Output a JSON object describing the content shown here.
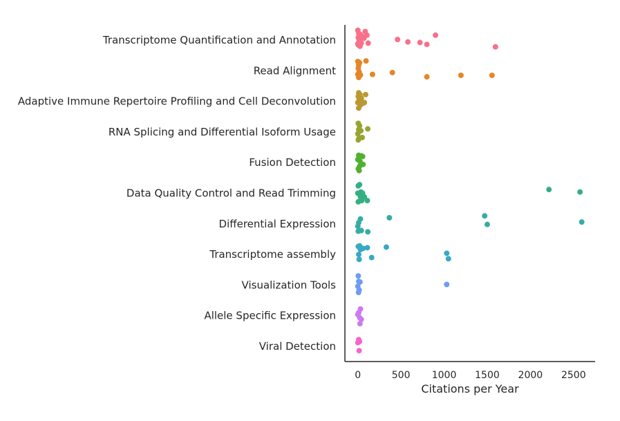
{
  "chart_data": {
    "type": "scatter",
    "xlabel": "Citations per Year",
    "ylabel": "",
    "xlim": [
      -150,
      2750
    ],
    "xticks": [
      0,
      500,
      1000,
      1500,
      2000,
      2500
    ],
    "xtick_labels": [
      "0",
      "500",
      "1000",
      "1500",
      "2000",
      "2500"
    ],
    "grid": false,
    "categories": [
      "Transcriptome Quantification and Annotation",
      "Read Alignment",
      "Adaptive Immune Repertoire Profiling and Cell Deconvolution",
      "RNA Splicing and Differential Isoform Usage",
      "Fusion Detection",
      "Data Quality Control and Read Trimming",
      "Differential Expression",
      "Transcriptome assembly",
      "Visualization Tools",
      "Allele Specific Expression",
      "Viral Detection"
    ],
    "colors": [
      "#f77189",
      "#e5862a",
      "#bb9832",
      "#97a431",
      "#50b131",
      "#34af84",
      "#36ada4",
      "#38a9c5",
      "#6e9bf4",
      "#cc7af4",
      "#f565cc"
    ],
    "points": [
      [
        [
          0,
          -0.32
        ],
        [
          85,
          -0.28
        ],
        [
          10,
          -0.22
        ],
        [
          30,
          -0.18
        ],
        [
          105,
          -0.16
        ],
        [
          50,
          -0.12
        ],
        [
          5,
          -0.08
        ],
        [
          20,
          -0.04
        ],
        [
          900,
          -0.16
        ],
        [
          460,
          -0.02
        ],
        [
          580,
          0.06
        ],
        [
          720,
          0.08
        ],
        [
          800,
          0.14
        ],
        [
          1595,
          0.22
        ],
        [
          120,
          0.1
        ],
        [
          15,
          0.02
        ],
        [
          40,
          0.1
        ],
        [
          5,
          0.16
        ],
        [
          25,
          0.2
        ],
        [
          70,
          -0.06
        ],
        [
          0,
          0.12
        ]
      ],
      [
        [
          0,
          -0.3
        ],
        [
          20,
          -0.26
        ],
        [
          95,
          -0.32
        ],
        [
          10,
          -0.18
        ],
        [
          5,
          -0.08
        ],
        [
          15,
          0.04
        ],
        [
          0,
          0.12
        ],
        [
          30,
          0.14
        ],
        [
          170,
          0.12
        ],
        [
          400,
          0.06
        ],
        [
          800,
          0.2
        ],
        [
          1195,
          0.15
        ],
        [
          1555,
          0.15
        ],
        [
          10,
          0.22
        ]
      ],
      [
        [
          10,
          -0.28
        ],
        [
          25,
          -0.22
        ],
        [
          5,
          -0.16
        ],
        [
          90,
          -0.22
        ],
        [
          40,
          -0.1
        ],
        [
          15,
          -0.04
        ],
        [
          0,
          0.04
        ],
        [
          60,
          0.06
        ],
        [
          75,
          0.04
        ],
        [
          30,
          0.12
        ],
        [
          10,
          0.22
        ]
      ],
      [
        [
          5,
          -0.28
        ],
        [
          20,
          -0.2
        ],
        [
          115,
          -0.1
        ],
        [
          10,
          -0.08
        ],
        [
          35,
          -0.04
        ],
        [
          0,
          0.06
        ],
        [
          50,
          0.18
        ],
        [
          15,
          0.2
        ],
        [
          5,
          0.26
        ]
      ],
      [
        [
          10,
          -0.24
        ],
        [
          40,
          -0.22
        ],
        [
          55,
          -0.2
        ],
        [
          0,
          -0.1
        ],
        [
          25,
          -0.04
        ],
        [
          60,
          0.06
        ],
        [
          20,
          0.12
        ],
        [
          5,
          0.2
        ],
        [
          15,
          0.26
        ]
      ],
      [
        [
          20,
          -0.28
        ],
        [
          5,
          -0.24
        ],
        [
          2215,
          -0.12
        ],
        [
          2575,
          -0.04
        ],
        [
          35,
          -0.04
        ],
        [
          0,
          0.0
        ],
        [
          55,
          0.0
        ],
        [
          75,
          0.12
        ],
        [
          30,
          0.12
        ],
        [
          110,
          0.24
        ],
        [
          5,
          0.28
        ],
        [
          45,
          0.24
        ]
      ],
      [
        [
          1470,
          -0.26
        ],
        [
          365,
          -0.2
        ],
        [
          30,
          -0.16
        ],
        [
          2595,
          -0.06
        ],
        [
          10,
          -0.04
        ],
        [
          1500,
          0.02
        ],
        [
          0,
          0.08
        ],
        [
          40,
          0.22
        ],
        [
          5,
          0.24
        ],
        [
          115,
          0.26
        ]
      ],
      [
        [
          20,
          -0.28
        ],
        [
          5,
          -0.26
        ],
        [
          330,
          -0.24
        ],
        [
          60,
          -0.2
        ],
        [
          110,
          -0.22
        ],
        [
          30,
          -0.16
        ],
        [
          1030,
          -0.04
        ],
        [
          10,
          0.0
        ],
        [
          160,
          0.1
        ],
        [
          1050,
          0.14
        ],
        [
          15,
          0.16
        ]
      ],
      [
        [
          5,
          -0.3
        ],
        [
          10,
          -0.12
        ],
        [
          25,
          -0.1
        ],
        [
          1030,
          -0.02
        ],
        [
          0,
          0.04
        ],
        [
          15,
          0.16
        ],
        [
          8,
          0.24
        ]
      ],
      [
        [
          30,
          -0.22
        ],
        [
          10,
          -0.1
        ],
        [
          0,
          -0.04
        ],
        [
          20,
          0.06
        ],
        [
          40,
          0.12
        ],
        [
          25,
          0.26
        ]
      ],
      [
        [
          10,
          -0.22
        ],
        [
          20,
          -0.16
        ],
        [
          0,
          -0.12
        ],
        [
          15,
          0.14
        ]
      ]
    ]
  }
}
